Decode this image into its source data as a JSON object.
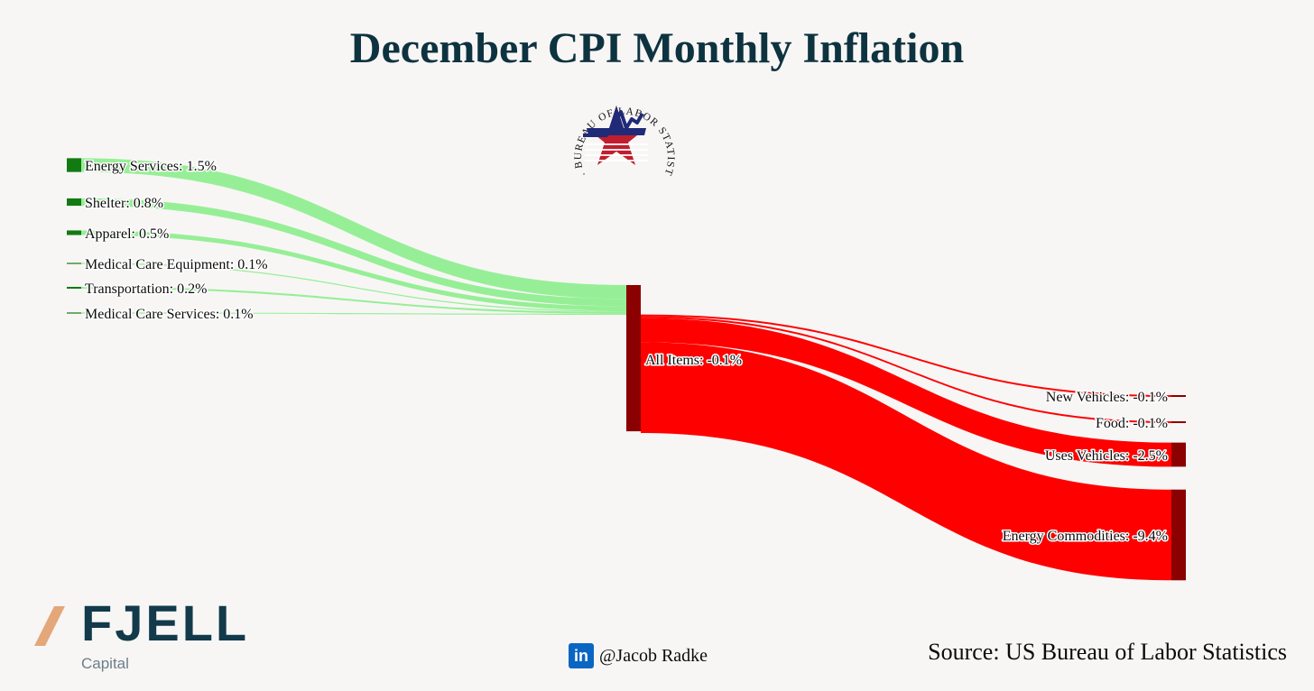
{
  "title": "December CPI Monthly Inflation",
  "logo": {
    "seal_text": "U.S. BUREAU OF LABOR STATISTICS"
  },
  "chart_data": {
    "type": "sankey",
    "center": {
      "label": "All Items: -0.1%",
      "value": -0.1
    },
    "sources": [
      {
        "name": "Energy Services",
        "label": "Energy Services: 1.5%",
        "value": 1.5
      },
      {
        "name": "Shelter",
        "label": "Shelter: 0.8%",
        "value": 0.8
      },
      {
        "name": "Apparel",
        "label": "Apparel: 0.5%",
        "value": 0.5
      },
      {
        "name": "Medical Care Equipment",
        "label": "Medical Care Equipment: 0.1%",
        "value": 0.1
      },
      {
        "name": "Transportation",
        "label": "Transportation: 0.2%",
        "value": 0.2
      },
      {
        "name": "Medical Care Services",
        "label": "Medical Care Services: 0.1%",
        "value": 0.1
      }
    ],
    "targets": [
      {
        "name": "New Vehicles",
        "label": "New Vehicles: -0.1%",
        "value": -0.1
      },
      {
        "name": "Food",
        "label": "Food: -0.1%",
        "value": -0.1
      },
      {
        "name": "Uses Vehicles",
        "label": "Uses Vehicles: -2.5%",
        "value": -2.5
      },
      {
        "name": "Energy Commodities",
        "label": "Energy Commodities: -9.4%",
        "value": -9.4
      }
    ],
    "colors": {
      "positive_node": "#127a12",
      "positive_link": "#90ee90",
      "negative_node": "#8b0000",
      "negative_link": "#ff0000"
    }
  },
  "branding": {
    "name": "FJELL",
    "subtitle": "Capital",
    "slash_color": "#e3a77a",
    "name_color": "#123a4a"
  },
  "credit": {
    "icon": "in",
    "name": "@Jacob Radke"
  },
  "source": "Source: US Bureau of Labor Statistics"
}
